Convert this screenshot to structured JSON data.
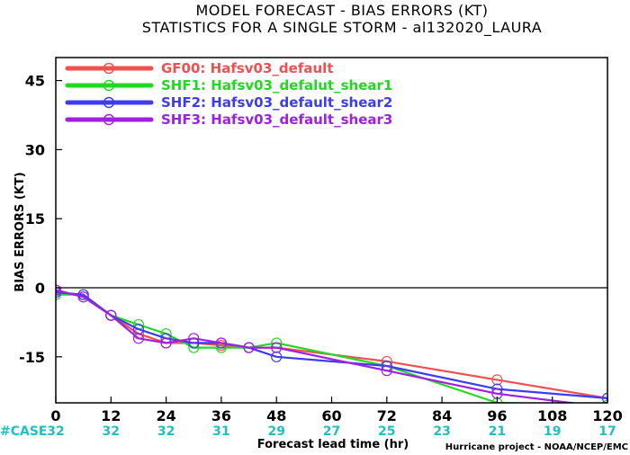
{
  "chart_data": {
    "type": "line",
    "title": "MODEL FORECAST - BIAS ERRORS (KT)",
    "subtitle": "STATISTICS FOR A SINGLE STORM - al132020_LAURA",
    "xlabel": "Forecast lead time (hr)",
    "ylabel": "BIAS ERRORS (KT)",
    "xlim": [
      0,
      120
    ],
    "ylim": [
      -25,
      50
    ],
    "xticks": [
      0,
      12,
      24,
      36,
      48,
      60,
      72,
      84,
      96,
      108,
      120
    ],
    "yticks": [
      -15,
      0,
      15,
      30,
      45
    ],
    "grid": false,
    "legend_position": "top-left",
    "series": [
      {
        "name": "GF00: Hafsv03_default",
        "color": "#f05050",
        "x": [
          0,
          6,
          12,
          18,
          24,
          30,
          36,
          42,
          48,
          72,
          96,
          120
        ],
        "y": [
          -0.5,
          -2,
          -6,
          -10,
          -12,
          -12,
          -12.5,
          -13,
          -13,
          -16,
          -20,
          -24
        ]
      },
      {
        "name": "SHF1: Hafsv03_defalut_shear1",
        "color": "#22d822",
        "x": [
          0,
          6,
          12,
          18,
          24,
          30,
          36,
          42,
          48,
          72,
          96,
          120
        ],
        "y": [
          -1.5,
          -1.5,
          -6,
          -8,
          -10,
          -13,
          -13,
          -13,
          -12,
          -17,
          -25,
          -25.5
        ]
      },
      {
        "name": "SHF2: Hafsv03_default_shear2",
        "color": "#3c3cf0",
        "x": [
          0,
          6,
          12,
          18,
          24,
          30,
          36,
          42,
          48,
          72,
          96,
          120
        ],
        "y": [
          -1,
          -1.5,
          -6,
          -9,
          -11,
          -12,
          -12,
          -13,
          -15,
          -17,
          -22,
          -24
        ]
      },
      {
        "name": "SHF3: Hafsv03_default_shear3",
        "color": "#a020e0",
        "x": [
          0,
          6,
          12,
          18,
          24,
          30,
          36,
          42,
          48,
          72,
          96,
          120
        ],
        "y": [
          -0.5,
          -2,
          -6,
          -11,
          -12,
          -11,
          -12,
          -13,
          -13,
          -18,
          -23,
          -26
        ]
      }
    ],
    "case_label": "#CASE",
    "case_color": "#20c0c0",
    "case_counts": [
      {
        "x": 0,
        "n": "32"
      },
      {
        "x": 12,
        "n": "32"
      },
      {
        "x": 24,
        "n": "32"
      },
      {
        "x": 36,
        "n": "31"
      },
      {
        "x": 48,
        "n": "29"
      },
      {
        "x": 60,
        "n": "27"
      },
      {
        "x": 72,
        "n": "25"
      },
      {
        "x": 84,
        "n": "23"
      },
      {
        "x": 96,
        "n": "21"
      },
      {
        "x": 108,
        "n": "19"
      },
      {
        "x": 120,
        "n": "17"
      }
    ],
    "credit": "Hurricane project - NOAA/NCEP/EMC"
  }
}
